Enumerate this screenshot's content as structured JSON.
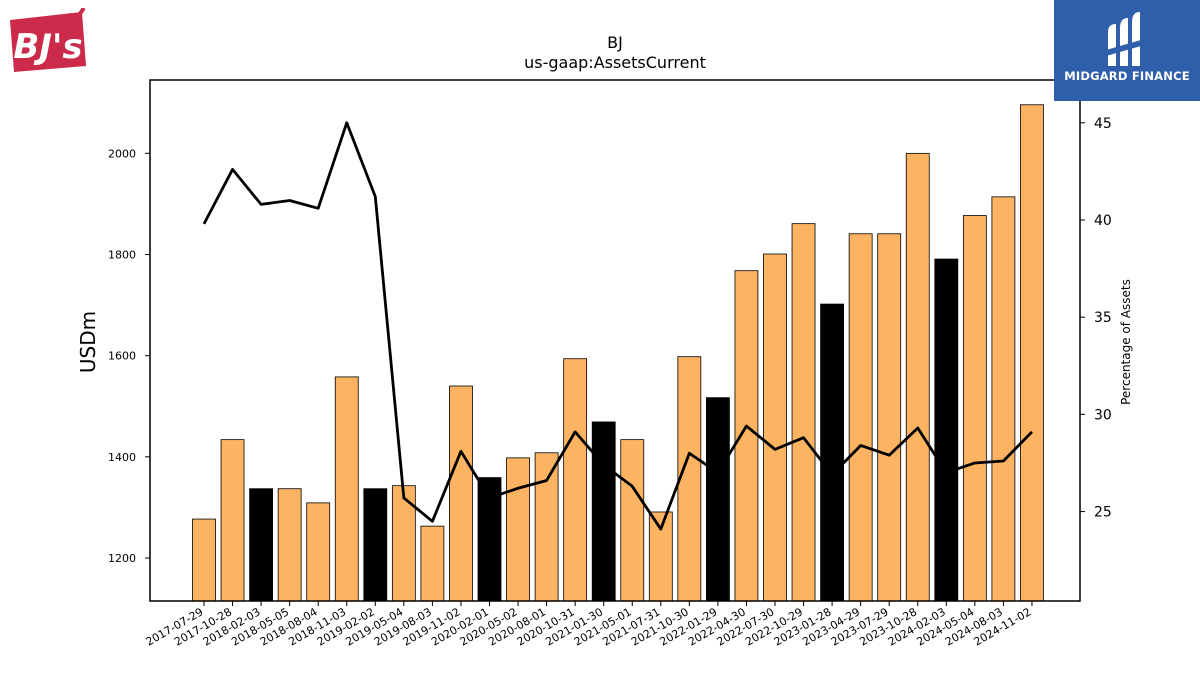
{
  "logos": {
    "left_text": "BJ's",
    "right_text": "MIDGARD FINANCE"
  },
  "colors": {
    "bar_default": "#fdb462",
    "bar_highlight": "#000000",
    "line": "#000000",
    "logo_left_red": "#cc2a4a",
    "logo_right_blue": "#2f5faa"
  },
  "chart_data": {
    "type": "bar",
    "title": "BJ",
    "subtitle": "us-gaap:AssetsCurrent",
    "ylabel": "USDm",
    "y2label": "Percentage of Assets",
    "ylim": [
      1115,
      2145
    ],
    "y2lim": [
      20.4,
      47.2
    ],
    "yticks": [
      1200,
      1400,
      1600,
      1800,
      2000
    ],
    "y2ticks": [
      25,
      30,
      35,
      40,
      45
    ],
    "categories": [
      "2017-07-29",
      "2017-10-28",
      "2018-02-03",
      "2018-05-05",
      "2018-08-04",
      "2018-11-03",
      "2019-02-02",
      "2019-05-04",
      "2019-08-03",
      "2019-11-02",
      "2020-02-01",
      "2020-05-02",
      "2020-08-01",
      "2020-10-31",
      "2021-01-30",
      "2021-05-01",
      "2021-07-31",
      "2021-10-30",
      "2022-01-29",
      "2022-04-30",
      "2022-07-30",
      "2022-10-29",
      "2023-01-28",
      "2023-04-29",
      "2023-07-29",
      "2023-10-28",
      "2024-02-03",
      "2024-05-04",
      "2024-08-03",
      "2024-11-02"
    ],
    "series": [
      {
        "kind": "bar",
        "values": [
          1277,
          1434,
          1337,
          1337,
          1309,
          1558,
          1337,
          1343,
          1263,
          1540,
          1359,
          1398,
          1408,
          1594,
          1469,
          1434,
          1291,
          1598,
          1517,
          1768,
          1801,
          1861,
          1702,
          1841,
          1841,
          2000,
          1791,
          1877,
          1914,
          2096
        ],
        "highlight": [
          false,
          false,
          true,
          false,
          false,
          false,
          true,
          false,
          false,
          false,
          true,
          false,
          false,
          false,
          true,
          false,
          false,
          false,
          true,
          false,
          false,
          false,
          true,
          false,
          false,
          false,
          true,
          false,
          false,
          false
        ]
      },
      {
        "kind": "line",
        "axis": "right",
        "values": [
          39.8,
          42.6,
          40.8,
          41.0,
          40.6,
          45.0,
          41.2,
          25.7,
          24.5,
          28.1,
          25.7,
          26.2,
          26.6,
          29.1,
          27.4,
          26.3,
          24.1,
          28.0,
          27.0,
          29.4,
          28.2,
          28.8,
          26.9,
          28.4,
          27.9,
          29.3,
          27.0,
          27.5,
          27.6,
          29.1
        ]
      }
    ]
  }
}
